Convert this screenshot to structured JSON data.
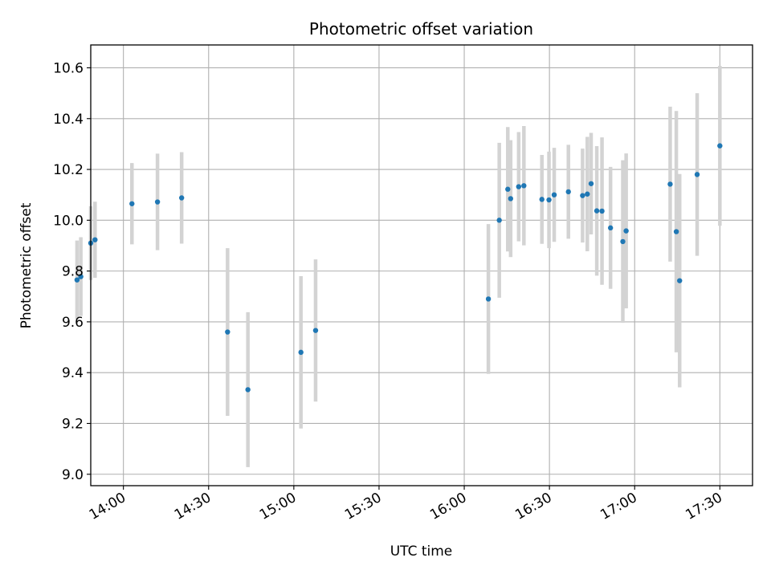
{
  "chart_data": {
    "type": "scatter",
    "title": "Photometric offset variation",
    "xlabel": "UTC time",
    "ylabel": "Photometric offset",
    "grid": true,
    "x_unit": "UTC time (HH:MM:SS)",
    "xlim": [
      "13:48:30",
      "17:41:30"
    ],
    "ylim": [
      8.955,
      10.69
    ],
    "x_ticks": [
      "14:00",
      "14:30",
      "15:00",
      "15:30",
      "16:00",
      "16:30",
      "17:00",
      "17:30"
    ],
    "y_ticks": [
      "9.0",
      "9.2",
      "9.4",
      "9.6",
      "9.8",
      "10.0",
      "10.2",
      "10.4",
      "10.6"
    ],
    "colors": {
      "point": "#1f77b4",
      "errorbar": "#d3d3d3",
      "grid": "#b0b0b0"
    },
    "points": [
      {
        "x": "13:43:40",
        "y": 9.765,
        "err": 0.155
      },
      {
        "x": "13:45:00",
        "y": 9.778,
        "err": 0.155
      },
      {
        "x": "13:48:30",
        "y": 9.91,
        "err": 0.145
      },
      {
        "x": "13:50:00",
        "y": 9.923,
        "err": 0.15
      },
      {
        "x": "14:03:00",
        "y": 10.065,
        "err": 0.16
      },
      {
        "x": "14:12:00",
        "y": 10.072,
        "err": 0.19
      },
      {
        "x": "14:20:30",
        "y": 10.088,
        "err": 0.18
      },
      {
        "x": "14:36:40",
        "y": 9.56,
        "err": 0.33
      },
      {
        "x": "14:43:50",
        "y": 9.333,
        "err": 0.305
      },
      {
        "x": "15:02:30",
        "y": 9.48,
        "err": 0.3
      },
      {
        "x": "15:07:40",
        "y": 9.566,
        "err": 0.28
      },
      {
        "x": "16:08:30",
        "y": 9.69,
        "err": 0.295
      },
      {
        "x": "16:12:20",
        "y": 10.0,
        "err": 0.305
      },
      {
        "x": "16:15:20",
        "y": 10.122,
        "err": 0.245
      },
      {
        "x": "16:16:20",
        "y": 10.085,
        "err": 0.23
      },
      {
        "x": "16:19:10",
        "y": 10.132,
        "err": 0.215
      },
      {
        "x": "16:21:00",
        "y": 10.136,
        "err": 0.235
      },
      {
        "x": "16:27:20",
        "y": 10.082,
        "err": 0.175
      },
      {
        "x": "16:29:50",
        "y": 10.08,
        "err": 0.19
      },
      {
        "x": "16:31:40",
        "y": 10.1,
        "err": 0.185
      },
      {
        "x": "16:36:40",
        "y": 10.112,
        "err": 0.185
      },
      {
        "x": "16:41:40",
        "y": 10.097,
        "err": 0.185
      },
      {
        "x": "16:43:20",
        "y": 10.103,
        "err": 0.225
      },
      {
        "x": "16:44:40",
        "y": 10.144,
        "err": 0.2
      },
      {
        "x": "16:46:40",
        "y": 10.037,
        "err": 0.255
      },
      {
        "x": "16:48:30",
        "y": 10.036,
        "err": 0.29
      },
      {
        "x": "16:51:30",
        "y": 9.97,
        "err": 0.24
      },
      {
        "x": "16:55:50",
        "y": 9.916,
        "err": 0.32
      },
      {
        "x": "16:57:00",
        "y": 9.958,
        "err": 0.305
      },
      {
        "x": "17:12:30",
        "y": 10.142,
        "err": 0.305
      },
      {
        "x": "17:14:40",
        "y": 9.955,
        "err": 0.475
      },
      {
        "x": "17:15:50",
        "y": 9.762,
        "err": 0.42
      },
      {
        "x": "17:22:00",
        "y": 10.18,
        "err": 0.32
      },
      {
        "x": "17:30:00",
        "y": 10.293,
        "err": 0.315
      }
    ]
  }
}
